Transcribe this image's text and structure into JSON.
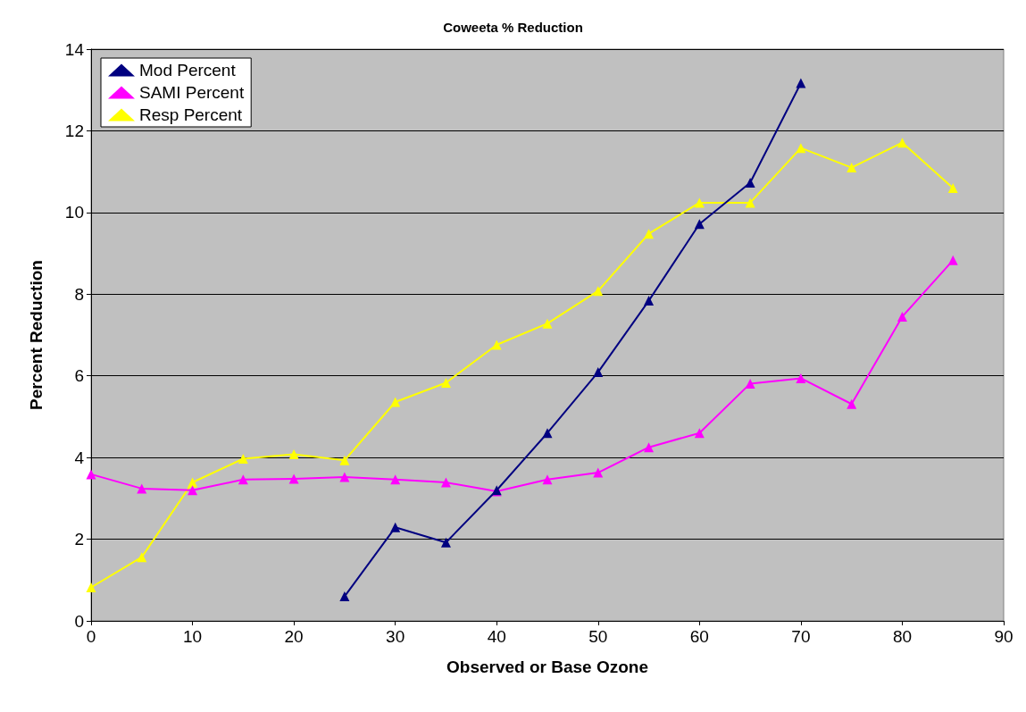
{
  "chart_data": {
    "type": "line",
    "title": "Coweeta % Reduction",
    "xlabel": "Observed or Base Ozone",
    "ylabel": "Percent Reduction",
    "xlim": [
      0,
      90
    ],
    "xticks": [
      0,
      10,
      20,
      30,
      40,
      50,
      60,
      70,
      80,
      90
    ],
    "ylim": [
      0,
      14
    ],
    "yticks": [
      0,
      2,
      4,
      6,
      8,
      10,
      12,
      14
    ],
    "grid": "y",
    "legend": "top left",
    "marker": "triangle",
    "line_style": "solid",
    "series": [
      {
        "name": "Mod Percent",
        "color": "#000080",
        "x": [
          25,
          30,
          35,
          40,
          45,
          50,
          55,
          60,
          65,
          70
        ],
        "values": [
          0.6,
          2.29,
          1.92,
          3.2,
          4.6,
          6.09,
          7.84,
          9.72,
          10.73,
          13.17
        ]
      },
      {
        "name": "SAMI Percent",
        "color": "#ff00ff",
        "x": [
          0,
          5,
          10,
          15,
          20,
          25,
          30,
          35,
          40,
          45,
          50,
          55,
          60,
          65,
          70,
          75,
          80,
          85
        ],
        "values": [
          3.59,
          3.24,
          3.2,
          3.46,
          3.48,
          3.52,
          3.46,
          3.39,
          3.17,
          3.46,
          3.63,
          4.25,
          4.6,
          5.81,
          5.94,
          5.31,
          7.45,
          8.83
        ]
      },
      {
        "name": "Resp Percent",
        "color": "#ffff00",
        "x": [
          0,
          5,
          10,
          15,
          20,
          25,
          30,
          35,
          40,
          45,
          50,
          55,
          60,
          65,
          70,
          75,
          80,
          85
        ],
        "values": [
          0.82,
          1.56,
          3.39,
          3.97,
          4.08,
          3.93,
          5.36,
          5.83,
          6.76,
          7.28,
          8.08,
          9.48,
          10.24,
          10.24,
          11.58,
          11.1,
          11.71,
          10.6
        ]
      }
    ]
  }
}
